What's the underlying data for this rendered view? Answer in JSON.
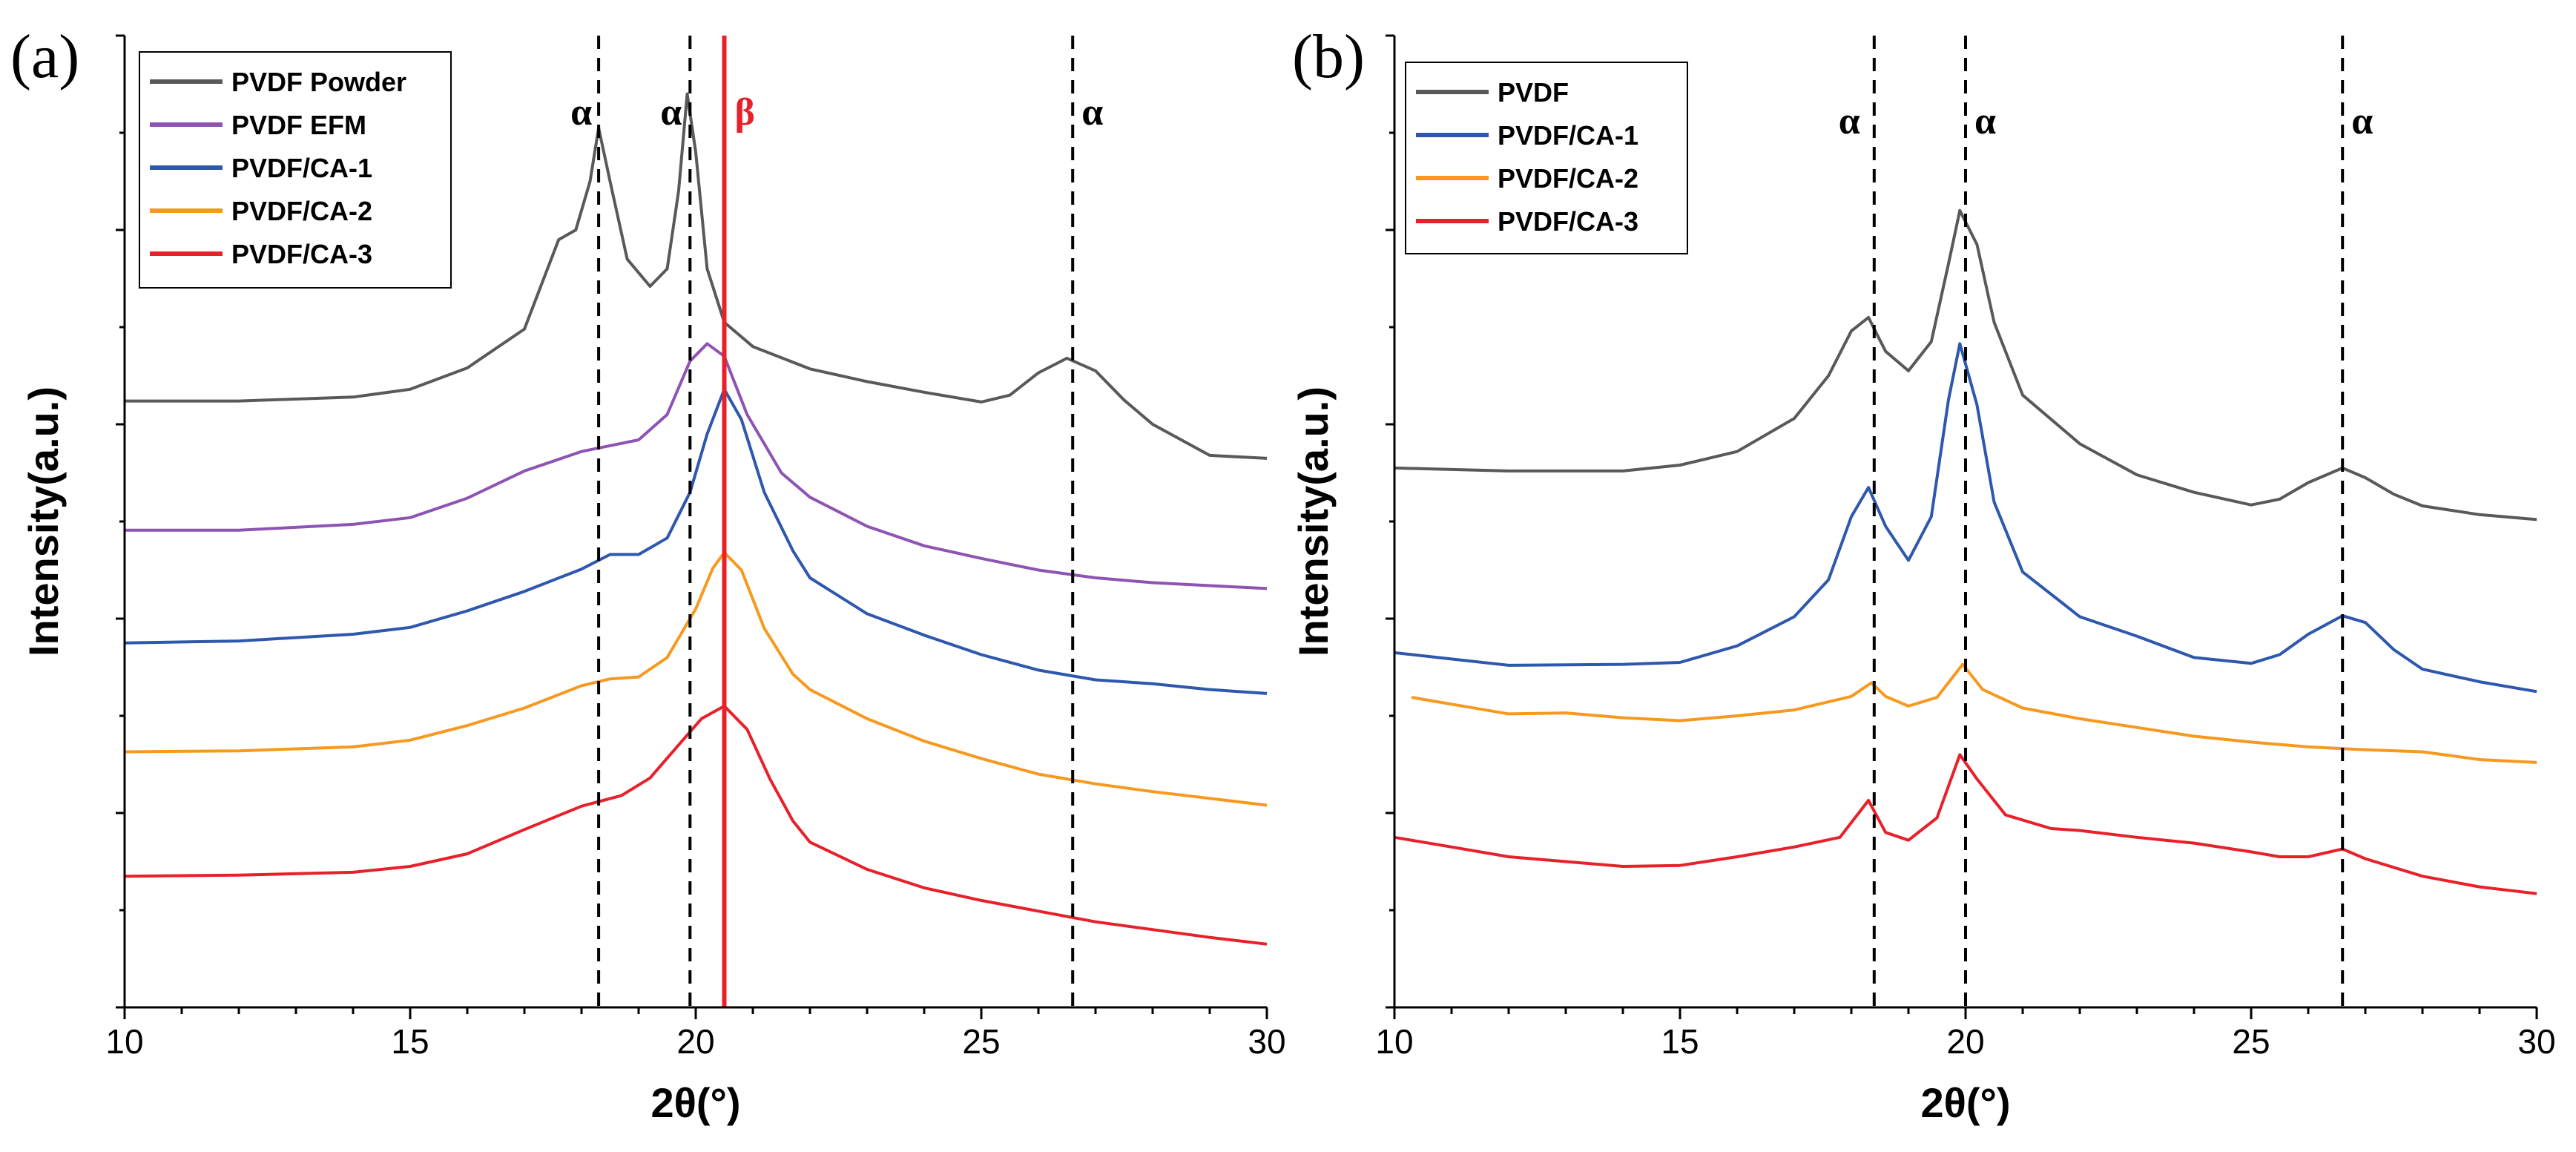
{
  "chart_data": [
    {
      "panel": "(a)",
      "type": "line",
      "xlabel": "2θ(°)",
      "ylabel": "Intensity(a.u.)",
      "xlim": [
        10,
        30
      ],
      "ylim": [
        0,
        100
      ],
      "xticks": [
        10,
        15,
        20,
        25,
        30
      ],
      "y_tick_labels": false,
      "legend_position": "top-left",
      "series": [
        {
          "name": "PVDF Powder",
          "color": "#595959",
          "points": [
            [
              10,
              62.4
            ],
            [
              12,
              62.4
            ],
            [
              14,
              62.8
            ],
            [
              15,
              63.6
            ],
            [
              16,
              65.8
            ],
            [
              17,
              69.8
            ],
            [
              17.6,
              79
            ],
            [
              17.9,
              80
            ],
            [
              18.15,
              85
            ],
            [
              18.3,
              90.5
            ],
            [
              18.5,
              85
            ],
            [
              18.8,
              77
            ],
            [
              19.2,
              74.2
            ],
            [
              19.5,
              76
            ],
            [
              19.7,
              84
            ],
            [
              19.85,
              94
            ],
            [
              20,
              88
            ],
            [
              20.2,
              76
            ],
            [
              20.5,
              70.5
            ],
            [
              21,
              68
            ],
            [
              22,
              65.7
            ],
            [
              23,
              64.4
            ],
            [
              24,
              63.3
            ],
            [
              25,
              62.3
            ],
            [
              25.5,
              63
            ],
            [
              26,
              65.3
            ],
            [
              26.5,
              66.8
            ],
            [
              27,
              65.5
            ],
            [
              27.5,
              62.5
            ],
            [
              28,
              60
            ],
            [
              29,
              56.8
            ],
            [
              30,
              56.5
            ]
          ]
        },
        {
          "name": "PVDF EFM",
          "color": "#8e54b3",
          "points": [
            [
              10,
              49.1
            ],
            [
              12,
              49.1
            ],
            [
              14,
              49.7
            ],
            [
              15,
              50.4
            ],
            [
              16,
              52.4
            ],
            [
              17,
              55.2
            ],
            [
              18,
              57.2
            ],
            [
              18.5,
              57.8
            ],
            [
              19,
              58.4
            ],
            [
              19.5,
              61
            ],
            [
              19.9,
              66.5
            ],
            [
              20.2,
              68.3
            ],
            [
              20.5,
              67
            ],
            [
              20.9,
              61
            ],
            [
              21.5,
              55
            ],
            [
              22,
              52.5
            ],
            [
              23,
              49.5
            ],
            [
              24,
              47.5
            ],
            [
              25,
              46.2
            ],
            [
              26,
              45
            ],
            [
              27,
              44.2
            ],
            [
              28,
              43.7
            ],
            [
              29,
              43.4
            ],
            [
              30,
              43.1
            ]
          ]
        },
        {
          "name": "PVDF/CA-1",
          "color": "#2e57ae",
          "points": [
            [
              10,
              37.5
            ],
            [
              12,
              37.7
            ],
            [
              14,
              38.4
            ],
            [
              15,
              39.1
            ],
            [
              16,
              40.8
            ],
            [
              17,
              42.8
            ],
            [
              18,
              45.1
            ],
            [
              18.5,
              46.6
            ],
            [
              19,
              46.6
            ],
            [
              19.5,
              48.3
            ],
            [
              19.9,
              53
            ],
            [
              20.2,
              59
            ],
            [
              20.5,
              63.6
            ],
            [
              20.8,
              60.5
            ],
            [
              21.2,
              53
            ],
            [
              21.7,
              47
            ],
            [
              22,
              44.2
            ],
            [
              23,
              40.5
            ],
            [
              24,
              38.3
            ],
            [
              25,
              36.3
            ],
            [
              26,
              34.7
            ],
            [
              27,
              33.7
            ],
            [
              28,
              33.3
            ],
            [
              29,
              32.7
            ],
            [
              30,
              32.3
            ]
          ]
        },
        {
          "name": "PVDF/CA-2",
          "color": "#f7991f",
          "points": [
            [
              10,
              26.3
            ],
            [
              12,
              26.4
            ],
            [
              14,
              26.8
            ],
            [
              15,
              27.5
            ],
            [
              16,
              29
            ],
            [
              17,
              30.8
            ],
            [
              18,
              33.1
            ],
            [
              18.5,
              33.8
            ],
            [
              19,
              34
            ],
            [
              19.5,
              36
            ],
            [
              20,
              41
            ],
            [
              20.3,
              45.2
            ],
            [
              20.5,
              46.8
            ],
            [
              20.8,
              45
            ],
            [
              21.2,
              39
            ],
            [
              21.7,
              34.3
            ],
            [
              22,
              32.7
            ],
            [
              23,
              29.7
            ],
            [
              24,
              27.4
            ],
            [
              25,
              25.6
            ],
            [
              26,
              24
            ],
            [
              27,
              23
            ],
            [
              28,
              22.2
            ],
            [
              29,
              21.5
            ],
            [
              30,
              20.8
            ]
          ]
        },
        {
          "name": "PVDF/CA-3",
          "color": "#e8202a",
          "points": [
            [
              10,
              13.5
            ],
            [
              12,
              13.6
            ],
            [
              14,
              13.9
            ],
            [
              15,
              14.5
            ],
            [
              16,
              15.8
            ],
            [
              17,
              18.3
            ],
            [
              18,
              20.7
            ],
            [
              18.7,
              21.8
            ],
            [
              19.2,
              23.6
            ],
            [
              19.7,
              27
            ],
            [
              20.1,
              29.7
            ],
            [
              20.5,
              31
            ],
            [
              20.9,
              28.6
            ],
            [
              21.3,
              23.5
            ],
            [
              21.7,
              19.2
            ],
            [
              22,
              17
            ],
            [
              23,
              14.2
            ],
            [
              24,
              12.3
            ],
            [
              25,
              11
            ],
            [
              26,
              9.9
            ],
            [
              27,
              8.8
            ],
            [
              28,
              8
            ],
            [
              29,
              7.2
            ],
            [
              30,
              6.5
            ]
          ]
        }
      ],
      "reference_lines": [
        {
          "x": 18.3,
          "style": "dashed",
          "color": "#000000",
          "label": "α"
        },
        {
          "x": 19.9,
          "style": "dashed",
          "color": "#000000",
          "label": "α"
        },
        {
          "x": 20.5,
          "style": "solid",
          "color": "#e8202a",
          "label": "β"
        },
        {
          "x": 26.6,
          "style": "dashed",
          "color": "#000000",
          "label": "α"
        }
      ]
    },
    {
      "panel": "(b)",
      "type": "line",
      "xlabel": "2θ(°)",
      "ylabel": "Intensity(a.u.)",
      "xlim": [
        10,
        30
      ],
      "ylim": [
        0,
        100
      ],
      "xticks": [
        10,
        15,
        20,
        25,
        30
      ],
      "y_tick_labels": false,
      "legend_position": "top-left",
      "series": [
        {
          "name": "PVDF",
          "color": "#595959",
          "points": [
            [
              10,
              55.5
            ],
            [
              12,
              55.2
            ],
            [
              14,
              55.2
            ],
            [
              15,
              55.8
            ],
            [
              16,
              57.2
            ],
            [
              17,
              60.6
            ],
            [
              17.6,
              65
            ],
            [
              18,
              69.6
            ],
            [
              18.3,
              71
            ],
            [
              18.6,
              67.5
            ],
            [
              19,
              65.5
            ],
            [
              19.4,
              68.5
            ],
            [
              19.7,
              76.5
            ],
            [
              19.9,
              82
            ],
            [
              20.2,
              78.5
            ],
            [
              20.5,
              70.5
            ],
            [
              21,
              63
            ],
            [
              22,
              58
            ],
            [
              23,
              54.8
            ],
            [
              24,
              53
            ],
            [
              25,
              51.7
            ],
            [
              25.5,
              52.3
            ],
            [
              26,
              54
            ],
            [
              26.6,
              55.5
            ],
            [
              27,
              54.5
            ],
            [
              27.5,
              52.8
            ],
            [
              28,
              51.6
            ],
            [
              29,
              50.7
            ],
            [
              30,
              50.2
            ]
          ]
        },
        {
          "name": "PVDF/CA-1",
          "color": "#2e57ae",
          "points": [
            [
              10,
              36.5
            ],
            [
              12,
              35.2
            ],
            [
              14,
              35.3
            ],
            [
              15,
              35.5
            ],
            [
              16,
              37.2
            ],
            [
              17,
              40.2
            ],
            [
              17.6,
              44
            ],
            [
              18,
              50.5
            ],
            [
              18.3,
              53.5
            ],
            [
              18.6,
              49.5
            ],
            [
              19,
              46
            ],
            [
              19.4,
              50.5
            ],
            [
              19.7,
              62.5
            ],
            [
              19.9,
              68.3
            ],
            [
              20.2,
              62
            ],
            [
              20.5,
              52
            ],
            [
              21,
              44.8
            ],
            [
              22,
              40.2
            ],
            [
              23,
              38.2
            ],
            [
              24,
              36
            ],
            [
              25,
              35.4
            ],
            [
              25.5,
              36.3
            ],
            [
              26,
              38.4
            ],
            [
              26.6,
              40.3
            ],
            [
              27,
              39.6
            ],
            [
              27.5,
              36.8
            ],
            [
              28,
              34.8
            ],
            [
              29,
              33.5
            ],
            [
              30,
              32.5
            ]
          ]
        },
        {
          "name": "PVDF/CA-2",
          "color": "#f7991f",
          "points": [
            [
              10.3,
              31.9
            ],
            [
              11,
              31.2
            ],
            [
              12,
              30.2
            ],
            [
              13,
              30.3
            ],
            [
              14,
              29.8
            ],
            [
              15,
              29.5
            ],
            [
              16,
              30
            ],
            [
              17,
              30.6
            ],
            [
              18,
              32
            ],
            [
              18.35,
              33.4
            ],
            [
              18.6,
              32
            ],
            [
              19,
              31
            ],
            [
              19.5,
              31.9
            ],
            [
              19.95,
              35.3
            ],
            [
              20.3,
              32.7
            ],
            [
              21,
              30.8
            ],
            [
              22,
              29.7
            ],
            [
              23,
              28.8
            ],
            [
              24,
              27.9
            ],
            [
              25,
              27.3
            ],
            [
              26,
              26.8
            ],
            [
              27,
              26.5
            ],
            [
              28,
              26.3
            ],
            [
              29,
              25.5
            ],
            [
              30,
              25.2
            ]
          ]
        },
        {
          "name": "PVDF/CA-3",
          "color": "#e8202a",
          "points": [
            [
              10,
              17.5
            ],
            [
              11,
              16.5
            ],
            [
              12,
              15.5
            ],
            [
              13,
              15
            ],
            [
              14,
              14.5
            ],
            [
              15,
              14.6
            ],
            [
              16,
              15.5
            ],
            [
              17,
              16.5
            ],
            [
              17.8,
              17.5
            ],
            [
              18.3,
              21.3
            ],
            [
              18.6,
              18
            ],
            [
              19,
              17.2
            ],
            [
              19.5,
              19.5
            ],
            [
              19.9,
              26
            ],
            [
              20.2,
              23.5
            ],
            [
              20.7,
              19.8
            ],
            [
              21.5,
              18.4
            ],
            [
              22,
              18.2
            ],
            [
              23,
              17.5
            ],
            [
              24,
              16.9
            ],
            [
              25,
              16
            ],
            [
              25.5,
              15.5
            ],
            [
              26,
              15.5
            ],
            [
              26.6,
              16.3
            ],
            [
              27,
              15.3
            ],
            [
              28,
              13.5
            ],
            [
              29,
              12.4
            ],
            [
              30,
              11.7
            ]
          ]
        }
      ],
      "reference_lines": [
        {
          "x": 18.4,
          "style": "dashed",
          "color": "#000000",
          "label": "α"
        },
        {
          "x": 20.0,
          "style": "dashed",
          "color": "#000000",
          "label": "α"
        },
        {
          "x": 26.6,
          "style": "dashed",
          "color": "#000000",
          "label": "α"
        }
      ]
    }
  ]
}
